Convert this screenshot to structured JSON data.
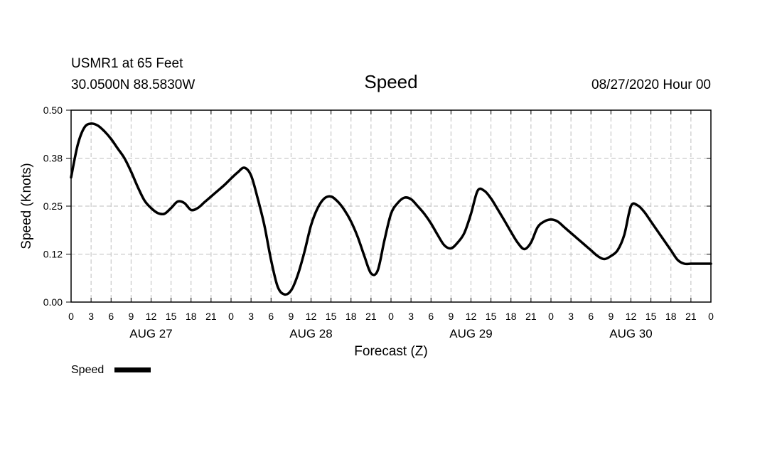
{
  "header": {
    "station": "USMR1 at 65 Feet",
    "location": "30.0500N 88.5830W",
    "title": "Speed",
    "issued": "08/27/2020 Hour 00"
  },
  "chart_data": {
    "type": "line",
    "title": "Speed",
    "xlabel": "Forecast (Z)",
    "ylabel": "Speed (Knots)",
    "xlim": [
      0,
      96
    ],
    "ylim": [
      0,
      0.5
    ],
    "y_ticks": [
      "0.00",
      "0.12",
      "0.25",
      "0.38",
      "0.50"
    ],
    "y_tick_values": [
      0,
      0.125,
      0.25,
      0.375,
      0.5
    ],
    "x_tick_hours": [
      0,
      3,
      6,
      9,
      12,
      15,
      18,
      21,
      24,
      27,
      30,
      33,
      36,
      39,
      42,
      45,
      48,
      51,
      54,
      57,
      60,
      63,
      66,
      69,
      72,
      75,
      78,
      81,
      84,
      87,
      90,
      93,
      96
    ],
    "x_tick_labels": [
      "0",
      "3",
      "6",
      "9",
      "12",
      "15",
      "18",
      "21",
      "0",
      "3",
      "6",
      "9",
      "12",
      "15",
      "18",
      "21",
      "0",
      "3",
      "6",
      "9",
      "12",
      "15",
      "18",
      "21",
      "0",
      "3",
      "6",
      "9",
      "12",
      "15",
      "18",
      "21",
      "0"
    ],
    "day_labels": [
      {
        "text": "AUG 27",
        "hour": 12
      },
      {
        "text": "AUG 28",
        "hour": 36
      },
      {
        "text": "AUG 29",
        "hour": 60
      },
      {
        "text": "AUG 30",
        "hour": 84
      }
    ],
    "grid": true,
    "legend": "bottom-left",
    "series": [
      {
        "name": "Speed",
        "color": "#000000",
        "x": [
          0,
          1,
          2,
          3,
          4,
          5,
          6,
          7,
          8,
          9,
          10,
          11,
          12,
          13,
          14,
          15,
          16,
          17,
          18,
          19,
          20,
          21,
          22,
          23,
          24,
          25,
          26,
          27,
          28,
          29,
          30,
          31,
          32,
          33,
          34,
          35,
          36,
          37,
          38,
          39,
          40,
          41,
          42,
          43,
          44,
          45,
          46,
          47,
          48,
          49,
          50,
          51,
          52,
          53,
          54,
          55,
          56,
          57,
          58,
          59,
          60,
          61,
          62,
          63,
          64,
          65,
          66,
          67,
          68,
          69,
          70,
          71,
          72,
          73,
          74,
          75,
          76,
          77,
          78,
          79,
          80,
          81,
          82,
          83,
          84,
          85,
          86,
          87,
          88,
          89,
          90,
          91,
          92,
          93,
          94,
          95,
          96
        ],
        "y": [
          0.325,
          0.41,
          0.455,
          0.465,
          0.46,
          0.445,
          0.425,
          0.4,
          0.375,
          0.34,
          0.3,
          0.265,
          0.245,
          0.232,
          0.23,
          0.245,
          0.262,
          0.258,
          0.24,
          0.245,
          0.26,
          0.275,
          0.29,
          0.305,
          0.322,
          0.338,
          0.35,
          0.33,
          0.27,
          0.2,
          0.11,
          0.04,
          0.02,
          0.03,
          0.07,
          0.13,
          0.2,
          0.245,
          0.27,
          0.275,
          0.262,
          0.24,
          0.21,
          0.17,
          0.12,
          0.075,
          0.082,
          0.16,
          0.23,
          0.258,
          0.272,
          0.268,
          0.25,
          0.23,
          0.205,
          0.175,
          0.148,
          0.14,
          0.155,
          0.18,
          0.23,
          0.29,
          0.29,
          0.27,
          0.242,
          0.213,
          0.183,
          0.155,
          0.138,
          0.155,
          0.195,
          0.21,
          0.215,
          0.21,
          0.195,
          0.18,
          0.165,
          0.15,
          0.135,
          0.12,
          0.112,
          0.12,
          0.135,
          0.175,
          0.25,
          0.252,
          0.235,
          0.21,
          0.185,
          0.16,
          0.135,
          0.11,
          0.1,
          0.1,
          0.1,
          0.1,
          0.1
        ]
      }
    ]
  },
  "legend": {
    "label": "Speed"
  }
}
